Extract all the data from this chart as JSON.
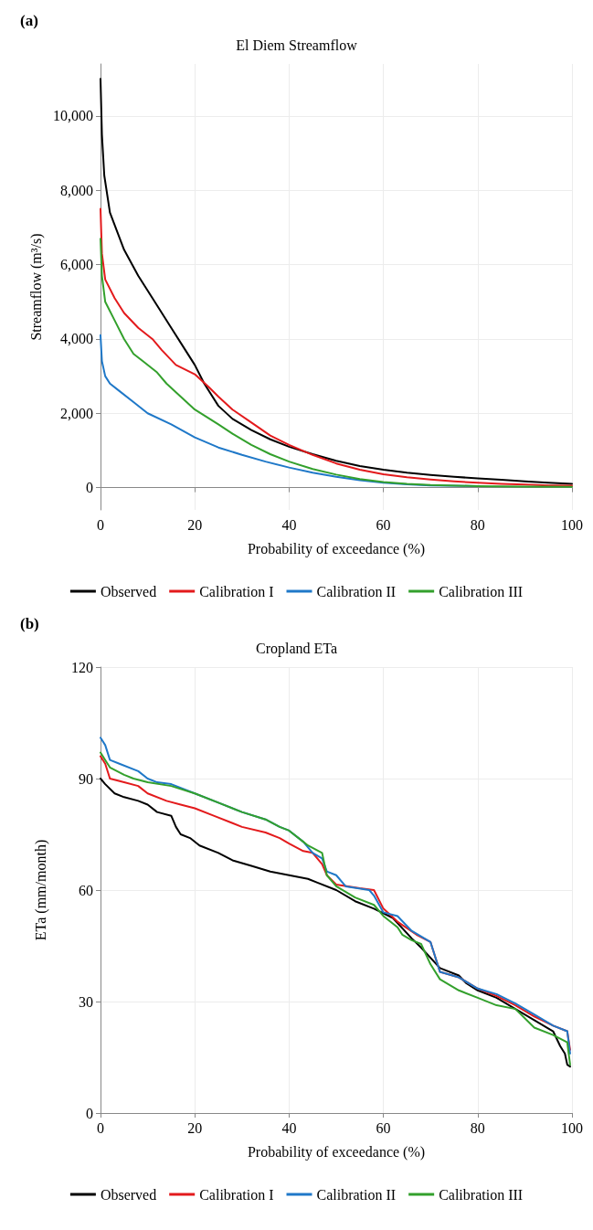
{
  "chart_data": [
    {
      "type": "line",
      "title": "El Diem Streamflow",
      "xlabel": "Probability of exceedance (%)",
      "ylabel": "Streamflow (m³/s)",
      "annotations": [
        "(a)"
      ],
      "xlim": [
        0,
        100
      ],
      "xticks": [
        0,
        20,
        40,
        60,
        80,
        100
      ],
      "ylim": [
        -600,
        11400
      ],
      "yticks": [
        0,
        {
          "value": 2000,
          "label": "2,000"
        },
        {
          "value": 4000,
          "label": "4,000"
        },
        {
          "value": 6000,
          "label": "6,000"
        },
        {
          "value": 8000,
          "label": "8,000"
        },
        {
          "value": 10000,
          "label": "10,000"
        }
      ],
      "grid": true,
      "legend": "bottom",
      "marker": "none",
      "line_style": "solid",
      "series": [
        {
          "name": "Observed",
          "color": "#000000",
          "x": [
            0,
            0.3,
            0.8,
            2,
            5,
            8,
            10,
            12,
            15,
            18,
            20,
            22,
            25,
            28,
            32,
            36,
            40,
            45,
            50,
            55,
            60,
            65,
            70,
            75,
            80,
            85,
            90,
            95,
            100
          ],
          "values": [
            11000,
            9500,
            8400,
            7400,
            6400,
            5700,
            5300,
            4900,
            4300,
            3700,
            3300,
            2800,
            2200,
            1850,
            1550,
            1300,
            1100,
            900,
            720,
            580,
            480,
            400,
            340,
            290,
            250,
            210,
            170,
            130,
            100
          ]
        },
        {
          "name": "Calibration I",
          "color": "#e31a1c",
          "x": [
            0,
            0.3,
            1,
            3,
            5,
            8,
            11,
            13,
            16,
            20,
            23,
            25,
            28,
            32,
            36,
            40,
            45,
            50,
            55,
            60,
            65,
            70,
            75,
            80,
            85,
            90,
            95,
            100
          ],
          "values": [
            7500,
            6300,
            5600,
            5100,
            4700,
            4300,
            4000,
            3700,
            3300,
            3050,
            2700,
            2450,
            2100,
            1750,
            1400,
            1150,
            880,
            650,
            480,
            360,
            280,
            220,
            170,
            130,
            100,
            80,
            60,
            50
          ]
        },
        {
          "name": "Calibration II",
          "color": "#1f78c8",
          "x": [
            0,
            0.3,
            1,
            2,
            4,
            7,
            10,
            15,
            20,
            25,
            30,
            35,
            40,
            45,
            50,
            55,
            60,
            65,
            70,
            80
          ],
          "values": [
            4100,
            3400,
            3000,
            2800,
            2600,
            2300,
            2000,
            1700,
            1350,
            1080,
            880,
            700,
            540,
            400,
            290,
            200,
            130,
            90,
            60,
            40
          ]
        },
        {
          "name": "Calibration III",
          "color": "#33a02c",
          "x": [
            0,
            0.3,
            1,
            3,
            5,
            7,
            9,
            12,
            14,
            17,
            20,
            25,
            28,
            32,
            36,
            40,
            45,
            50,
            55,
            60,
            65,
            70,
            80,
            90,
            100
          ],
          "values": [
            6700,
            5700,
            5000,
            4500,
            4000,
            3600,
            3400,
            3100,
            2800,
            2450,
            2100,
            1700,
            1450,
            1150,
            900,
            700,
            500,
            350,
            230,
            150,
            100,
            70,
            40,
            30,
            20
          ]
        }
      ]
    },
    {
      "type": "line",
      "title": "Cropland ETa",
      "xlabel": "Probability of exceedance (%)",
      "ylabel": "ETa (mm/month)",
      "annotations": [
        "(b)"
      ],
      "xlim": [
        0,
        100
      ],
      "xticks": [
        0,
        20,
        40,
        60,
        80,
        100
      ],
      "ylim": [
        0,
        120
      ],
      "yticks": [
        0,
        30,
        60,
        90,
        120
      ],
      "grid": true,
      "legend": "bottom",
      "marker": "none",
      "line_style": "solid",
      "series": [
        {
          "name": "Observed",
          "color": "#000000",
          "x": [
            0,
            1,
            3,
            5,
            8,
            10,
            12,
            15,
            16,
            17,
            19,
            21,
            25,
            28,
            32,
            36,
            40,
            44,
            46,
            50,
            54,
            58,
            62,
            66,
            68,
            72,
            76,
            77.5,
            80,
            84,
            88,
            92,
            96,
            97.5,
            98.5,
            99,
            99.6
          ],
          "values": [
            90,
            88.5,
            86,
            85,
            84,
            83,
            81,
            80,
            77,
            75,
            74,
            72,
            70,
            68,
            66.5,
            65,
            64,
            63,
            62,
            60,
            57,
            55,
            52.5,
            47,
            44.5,
            39,
            37,
            35,
            33,
            31,
            28,
            25,
            22,
            18,
            16,
            13,
            12.5
          ]
        },
        {
          "name": "Calibration I",
          "color": "#e31a1c",
          "x": [
            0,
            1,
            2,
            5,
            8,
            10,
            14,
            17,
            20,
            24,
            28,
            30,
            35,
            38,
            40,
            43,
            45,
            47,
            48,
            50,
            55,
            58,
            60,
            63,
            67,
            70,
            72,
            76,
            80,
            84,
            88,
            92,
            96,
            99,
            99.6
          ],
          "values": [
            96,
            94,
            90,
            89,
            88,
            86,
            84,
            83,
            82,
            80,
            78,
            77,
            75.5,
            74,
            72.5,
            70.5,
            70,
            67,
            64,
            61.5,
            60.5,
            60,
            55,
            51.5,
            48,
            46,
            38,
            36.5,
            33.5,
            31.5,
            29,
            26,
            23.5,
            22,
            17
          ]
        },
        {
          "name": "Calibration II",
          "color": "#1f78c8",
          "x": [
            0,
            1,
            2,
            4,
            8,
            10,
            12,
            15,
            20,
            25,
            30,
            35,
            38,
            40,
            43,
            45,
            47,
            48,
            50,
            52,
            57,
            58,
            60,
            63,
            66,
            70,
            72,
            76,
            80,
            84,
            88,
            92,
            96,
            99,
            99.6
          ],
          "values": [
            101,
            99,
            95,
            94,
            92,
            90,
            89,
            88.5,
            86,
            83.5,
            81,
            79,
            77,
            76,
            73,
            70,
            68.5,
            65,
            64,
            61,
            60,
            58.5,
            54,
            53,
            49,
            46,
            38,
            36.5,
            33.5,
            32,
            29.5,
            26.5,
            23.5,
            22,
            16
          ]
        },
        {
          "name": "Calibration III",
          "color": "#33a02c",
          "x": [
            0,
            1,
            2,
            5,
            7,
            10,
            15,
            20,
            25,
            30,
            35,
            38,
            40,
            43,
            44,
            47,
            48,
            50,
            54,
            58,
            60,
            63,
            64,
            66,
            68,
            70,
            72,
            76,
            80,
            84,
            88,
            92,
            96,
            99,
            99.6
          ],
          "values": [
            97,
            95,
            93,
            91,
            90,
            89,
            88,
            86,
            83.5,
            81,
            79,
            77,
            76,
            73,
            72,
            70,
            64,
            61,
            58,
            56,
            53,
            50,
            48,
            46.5,
            45.5,
            40,
            36,
            33,
            31,
            29,
            28,
            23,
            21,
            19,
            13
          ]
        }
      ]
    }
  ]
}
